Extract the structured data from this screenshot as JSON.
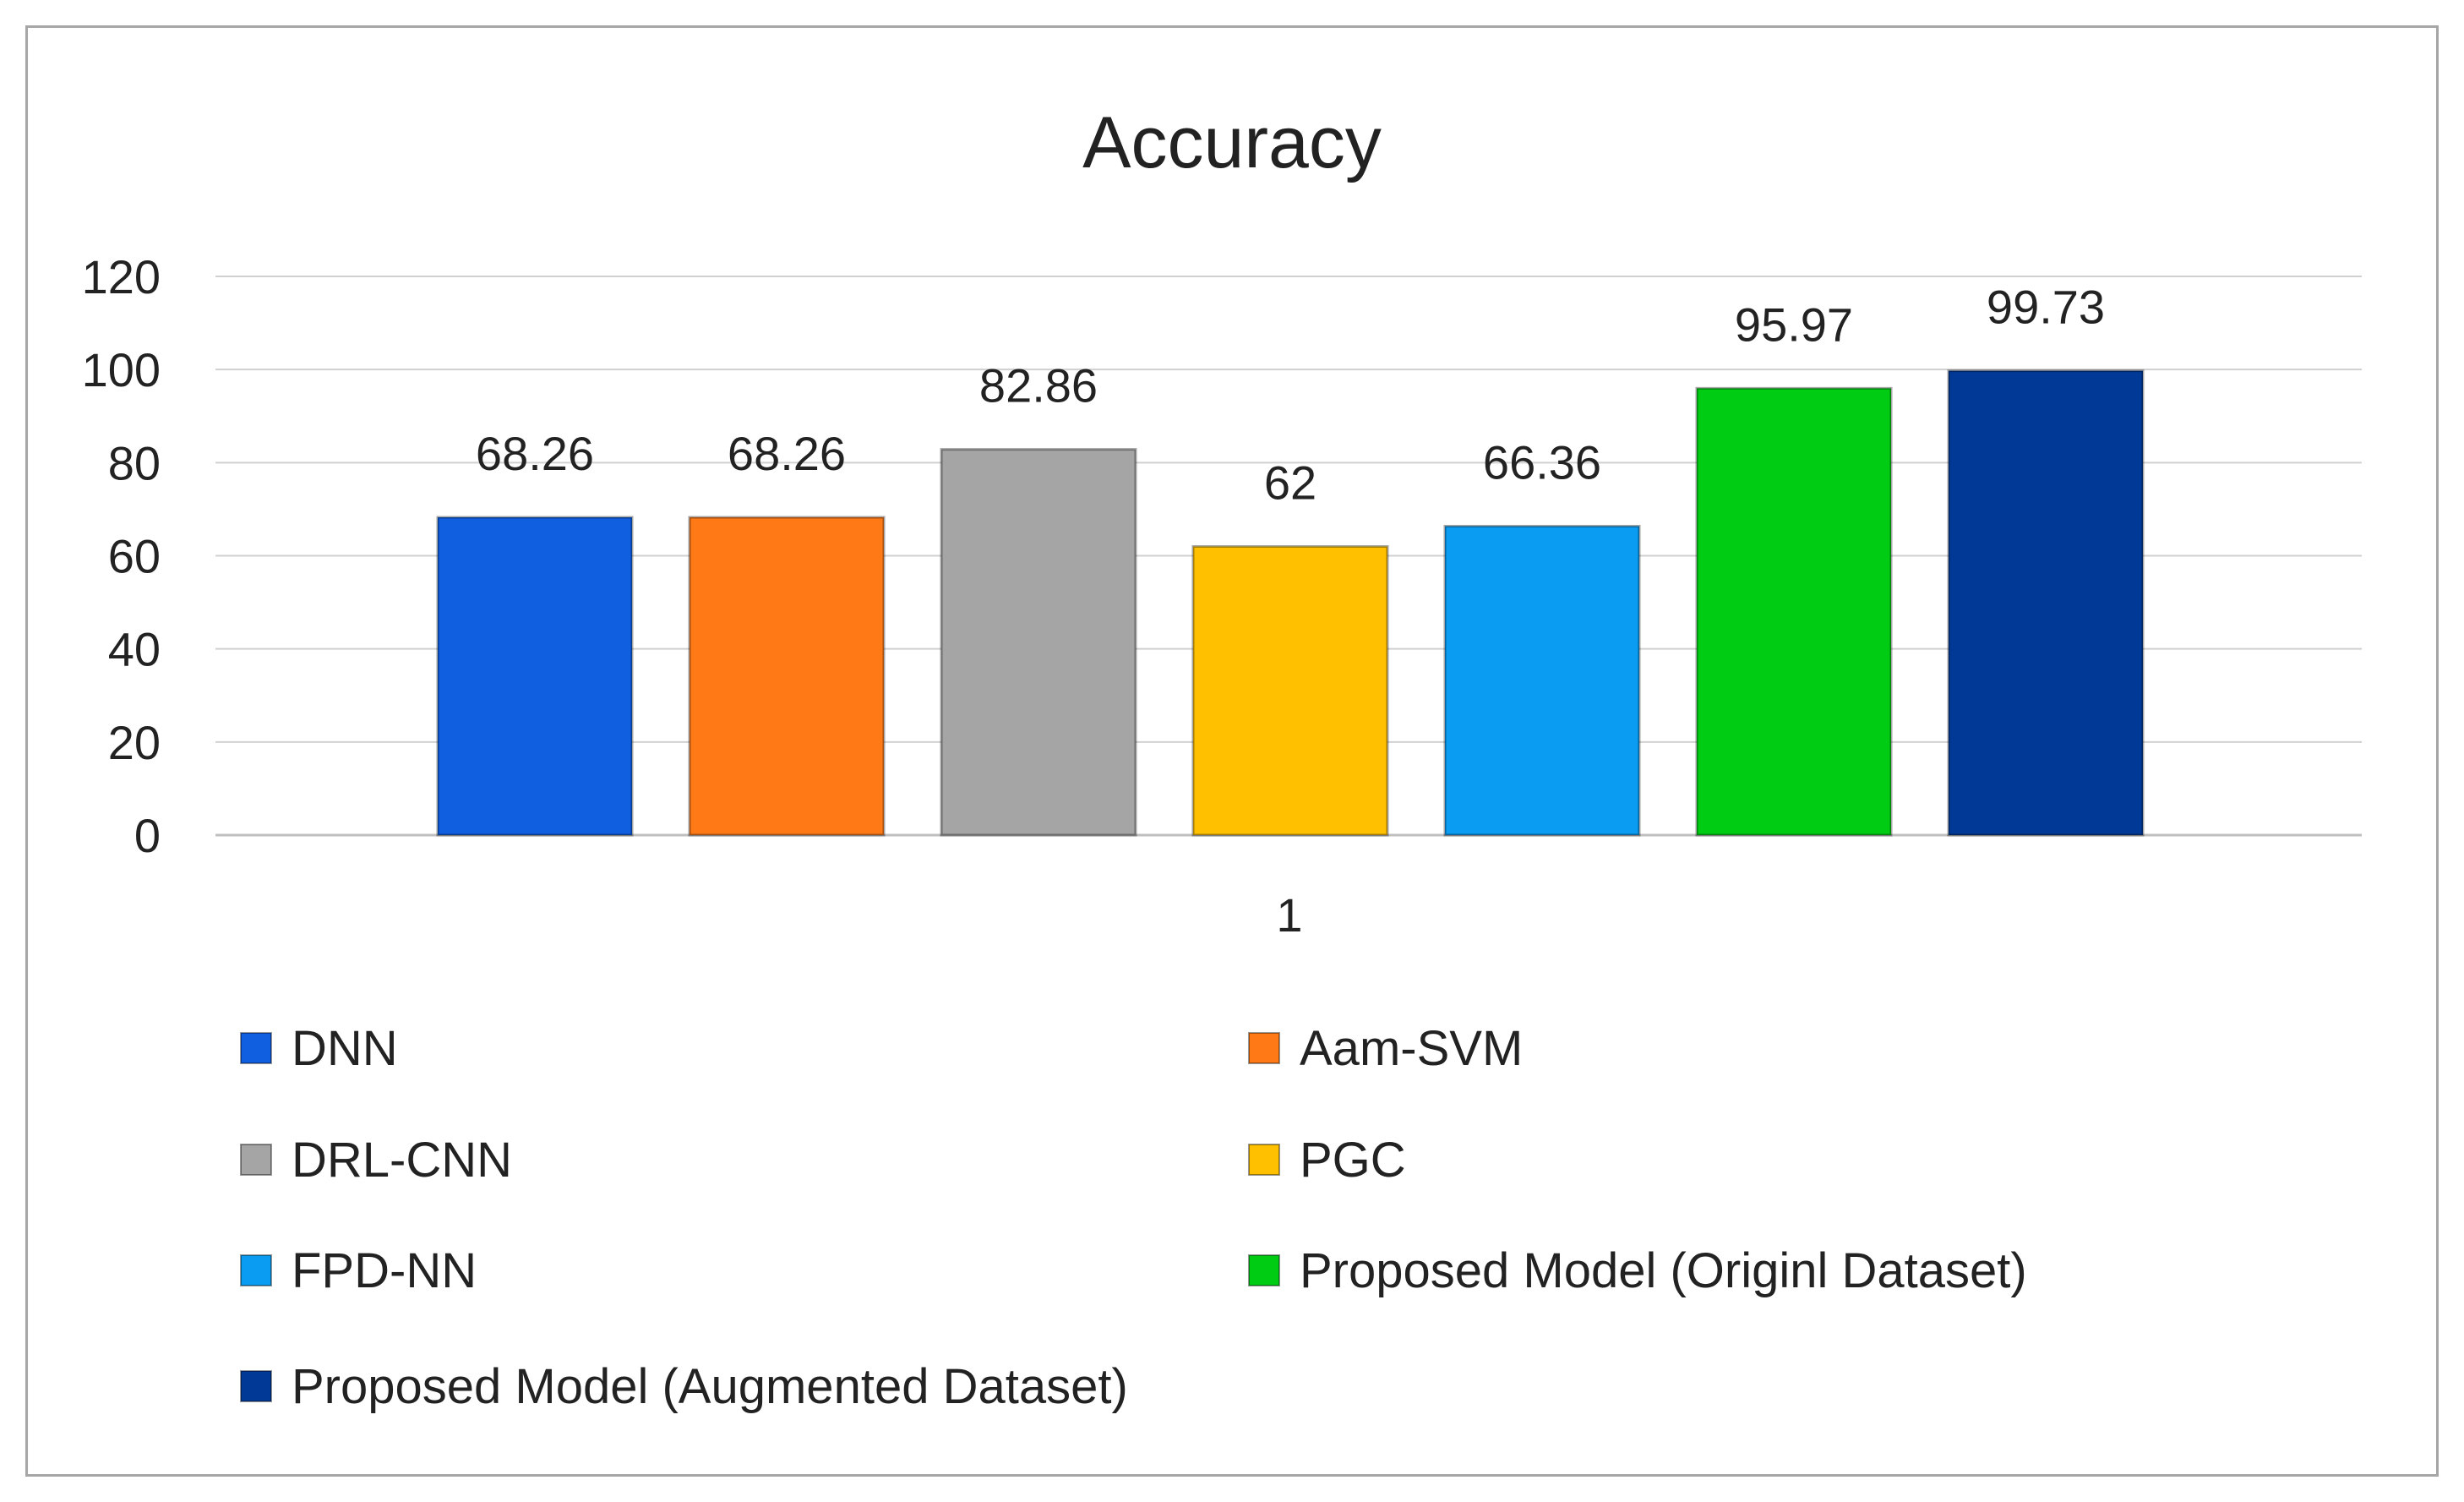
{
  "chart_data": {
    "type": "bar",
    "title": "Accuracy",
    "xlabel": "",
    "ylabel": "",
    "categories": [
      "1"
    ],
    "ylim": [
      0,
      120
    ],
    "yticks": [
      0,
      20,
      40,
      60,
      80,
      100,
      120
    ],
    "grid": true,
    "legend_position": "bottom",
    "series": [
      {
        "name": "DNN",
        "values": [
          68.26
        ],
        "label": "68.26",
        "color": "#0f5fe0"
      },
      {
        "name": "Aam-SVM",
        "values": [
          68.26
        ],
        "label": "68.26",
        "color": "#ff7a16"
      },
      {
        "name": "DRL-CNN",
        "values": [
          82.86
        ],
        "label": "82.86",
        "color": "#a5a5a5"
      },
      {
        "name": "PGC",
        "values": [
          62
        ],
        "label": "62",
        "color": "#ffc000"
      },
      {
        "name": "FPD-NN",
        "values": [
          66.36
        ],
        "label": "66.36",
        "color": "#0a9bf2"
      },
      {
        "name": "Proposed Model (Originl Dataset)",
        "values": [
          95.97
        ],
        "label": "95.97",
        "color": "#00cc14"
      },
      {
        "name": "Proposed Model (Augmented Dataset)",
        "values": [
          99.73
        ],
        "label": "99.73",
        "color": "#003a96"
      }
    ]
  }
}
